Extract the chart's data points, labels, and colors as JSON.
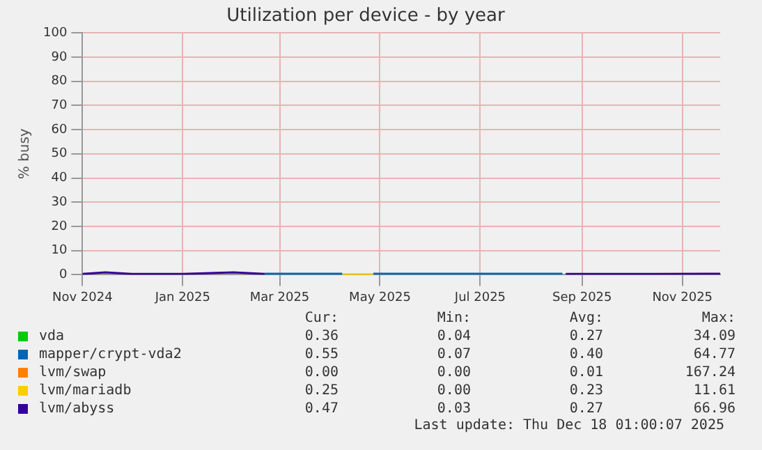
{
  "chart_data": {
    "type": "line",
    "title": "Utilization per device - by year",
    "ylabel": "% busy",
    "series": [
      {
        "name": "vda",
        "color": "#00cc00"
      },
      {
        "name": "mapper/crypt-vda2",
        "color": "#0066b3",
        "x": [
          "2025-02-20",
          "2025-04-08",
          "2025-04-17",
          "2025-04-27",
          "2025-08-20"
        ],
        "values": [
          0.4,
          0.4,
          null,
          0.4,
          0.4
        ]
      },
      {
        "name": "lvm/swap",
        "color": "#ff8000"
      },
      {
        "name": "lvm/mariadb",
        "color": "#ffcc00",
        "x": [
          "2025-04-08",
          "2025-04-27"
        ],
        "values": [
          0.2,
          0.2
        ]
      },
      {
        "name": "lvm/abyss",
        "color": "#330099",
        "x": [
          "2024-11-01",
          "2024-11-15",
          "2024-12-01",
          "2025-01-01",
          "2025-02-01",
          "2025-02-20",
          "2025-05-15",
          "2025-08-22",
          "2025-09-15",
          "2025-10-15",
          "2025-11-24"
        ],
        "values": [
          0.3,
          1,
          0.3,
          0.3,
          1,
          0.3,
          null,
          0.3,
          0.3,
          0.3,
          0.4
        ]
      }
    ],
    "xlim": [
      "2024-11-01",
      "2025-11-24"
    ],
    "xticks": [
      {
        "value": "2024-11-01",
        "label": "Nov 2024"
      },
      {
        "value": "2025-01-01",
        "label": "Jan 2025"
      },
      {
        "value": "2025-03-01",
        "label": "Mar 2025"
      },
      {
        "value": "2025-05-01",
        "label": "May 2025"
      },
      {
        "value": "2025-07-01",
        "label": "Jul 2025"
      },
      {
        "value": "2025-09-01",
        "label": "Sep 2025"
      },
      {
        "value": "2025-11-01",
        "label": "Nov 2025"
      }
    ],
    "ylim": [
      0,
      100
    ],
    "yticks": [
      0,
      10,
      20,
      30,
      40,
      50,
      60,
      70,
      80,
      90,
      100
    ],
    "grid": true,
    "legend": "bottom",
    "marker": "none",
    "line_style": "solid",
    "annotations": [
      "Cur:",
      "Min:",
      "Avg:",
      "Max:",
      "0.36",
      "0.04",
      "0.27",
      "34.09",
      "0.55",
      "0.07",
      "0.40",
      "64.77",
      "0.00",
      "0.00",
      "0.01",
      "167.24",
      "0.25",
      "0.00",
      "0.23",
      "11.61",
      "0.47",
      "0.03",
      "0.27",
      "66.96",
      "Last update: Thu Dec 18 01:00:07 2025"
    ]
  }
}
